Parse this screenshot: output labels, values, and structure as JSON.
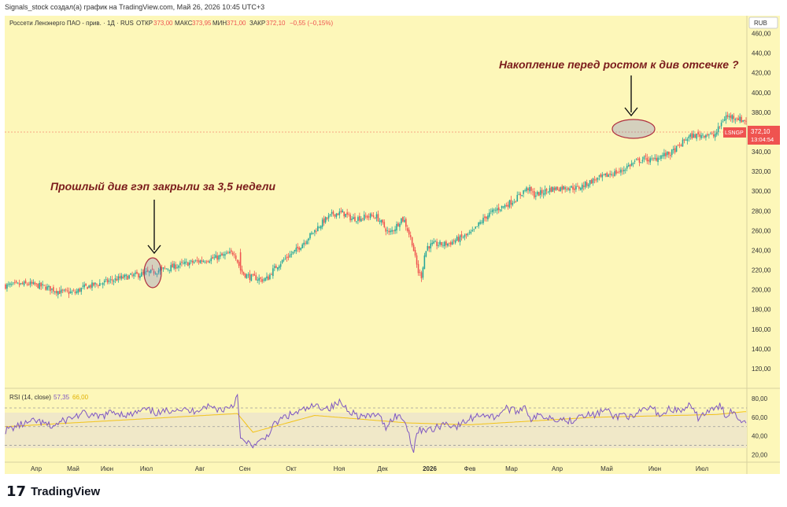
{
  "header": {
    "attribution": "Signals_stock создал(а) график на TradingView.com, Май 26, 2026 10:45 UTC+3"
  },
  "legend": {
    "symbol": "Россети Ленэнерго ПАО - прив. · 1Д · RUS",
    "o_label": "ОТКР",
    "o_val": "373,00",
    "h_label": "МАКС",
    "h_val": "373,95",
    "l_label": "МИН",
    "l_val": "371,00",
    "c_label": "ЗАКР",
    "c_val": "372,10",
    "change": "−0,55 (−0,15%)"
  },
  "currency": "RUB",
  "price_tag": {
    "ticker": "LSNGP",
    "price": "372,10",
    "countdown": "13:04:54"
  },
  "annotations": {
    "left": "Прошлый див гэп закрыли за 3,5 недели",
    "right": "Накопление перед ростом к див отсечке ?"
  },
  "rsi": {
    "title": "RSI (14, close)",
    "value": "57,35",
    "ma": "66,00"
  },
  "branding": {
    "logo_mark": "17",
    "name": "TradingView"
  },
  "colors": {
    "background": "#fdf7b9",
    "up": "#26a69a",
    "down": "#ef5350",
    "rsi_line": "#7e57c2",
    "rsi_ma": "#f3c316",
    "rsi_band": "#f0e8c8",
    "annotation": "#7b1c1c",
    "price_tag": "#ef5350"
  },
  "chart_data": [
    {
      "type": "candlestick",
      "y_ticks": [
        120,
        140,
        160,
        180,
        200,
        220,
        240,
        260,
        280,
        300,
        320,
        340,
        360,
        380,
        400,
        420,
        440,
        460
      ],
      "y_tick_labels": [
        "120,00",
        "140,00",
        "160,00",
        "180,00",
        "200,00",
        "220,00",
        "240,00",
        "260,00",
        "280,00",
        "300,00",
        "320,00",
        "340,00",
        "360,00",
        "380,00",
        "400,00",
        "420,00",
        "440,00",
        "460,00"
      ],
      "ylim": [
        100,
        478
      ],
      "x_labels": [
        "Апр",
        "Май",
        "Июн",
        "Июл",
        "Авг",
        "Сен",
        "Окт",
        "Ноя",
        "Дек",
        "2026",
        "Фев",
        "Мар",
        "Апр",
        "Май",
        "Июн",
        "Июл"
      ],
      "bold_x_label": "2026",
      "close_path": [
        [
          0,
          204
        ],
        [
          15,
          206
        ],
        [
          25,
          203
        ],
        [
          35,
          198
        ],
        [
          45,
          197
        ],
        [
          50,
          202
        ],
        [
          55,
          204
        ],
        [
          65,
          208
        ],
        [
          75,
          212
        ],
        [
          85,
          215
        ],
        [
          95,
          218
        ],
        [
          105,
          222
        ],
        [
          115,
          226
        ],
        [
          125,
          229
        ],
        [
          135,
          232
        ],
        [
          142,
          235
        ],
        [
          148,
          238
        ],
        [
          150,
          229
        ],
        [
          152,
          220
        ],
        [
          154,
          216
        ],
        [
          158,
          213
        ],
        [
          162,
          212
        ],
        [
          166,
          210
        ],
        [
          170,
          212
        ],
        [
          172,
          218
        ],
        [
          176,
          225
        ],
        [
          182,
          233
        ],
        [
          188,
          240
        ],
        [
          194,
          250
        ],
        [
          200,
          260
        ],
        [
          206,
          270
        ],
        [
          212,
          277
        ],
        [
          218,
          278
        ],
        [
          224,
          272
        ],
        [
          230,
          273
        ],
        [
          236,
          275
        ],
        [
          240,
          274
        ],
        [
          244,
          266
        ],
        [
          248,
          257
        ],
        [
          252,
          263
        ],
        [
          256,
          272
        ],
        [
          258,
          270
        ],
        [
          260,
          261
        ],
        [
          263,
          248
        ],
        [
          265,
          232
        ],
        [
          267,
          218
        ],
        [
          269,
          214
        ],
        [
          271,
          235
        ],
        [
          273,
          244
        ],
        [
          277,
          246
        ],
        [
          282,
          246
        ],
        [
          287,
          247
        ],
        [
          292,
          251
        ],
        [
          297,
          254
        ],
        [
          302,
          258
        ],
        [
          307,
          268
        ],
        [
          312,
          276
        ],
        [
          318,
          282
        ],
        [
          324,
          286
        ],
        [
          330,
          292
        ],
        [
          335,
          300
        ],
        [
          338,
          303
        ],
        [
          342,
          296
        ],
        [
          346,
          298
        ],
        [
          352,
          302
        ],
        [
          358,
          303
        ],
        [
          364,
          304
        ],
        [
          370,
          303
        ],
        [
          374,
          306
        ],
        [
          380,
          311
        ],
        [
          386,
          314
        ],
        [
          392,
          318
        ],
        [
          398,
          320
        ],
        [
          402,
          325
        ],
        [
          408,
          330
        ],
        [
          414,
          333
        ],
        [
          418,
          331
        ],
        [
          424,
          336
        ],
        [
          430,
          338
        ],
        [
          436,
          346
        ],
        [
          440,
          353
        ],
        [
          444,
          356
        ],
        [
          450,
          357
        ],
        [
          454,
          358
        ],
        [
          458,
          356
        ],
        [
          460,
          360
        ],
        [
          462,
          366
        ],
        [
          464,
          372
        ],
        [
          466,
          376
        ],
        [
          468,
          375
        ],
        [
          470,
          376
        ],
        [
          472,
          375
        ],
        [
          474,
          374
        ],
        [
          476,
          372
        ],
        [
          478,
          372
        ]
      ],
      "highlights": [
        {
          "center_index": 150,
          "price": 227
        },
        {
          "center_index": 468,
          "price": 373
        }
      ]
    },
    {
      "type": "line",
      "title": "RSI (14, close)",
      "y_ticks": [
        20,
        40,
        60,
        80
      ],
      "y_tick_labels": [
        "20,00",
        "40,00",
        "60,00",
        "80,00"
      ],
      "ylim": [
        12,
        91
      ],
      "bands": [
        30,
        50,
        70
      ],
      "rsi_path": [
        [
          0,
          46
        ],
        [
          10,
          52
        ],
        [
          20,
          56
        ],
        [
          30,
          50
        ],
        [
          40,
          58
        ],
        [
          50,
          64
        ],
        [
          60,
          60
        ],
        [
          70,
          66
        ],
        [
          80,
          62
        ],
        [
          90,
          68
        ],
        [
          100,
          64
        ],
        [
          110,
          70
        ],
        [
          120,
          66
        ],
        [
          130,
          72
        ],
        [
          140,
          68
        ],
        [
          148,
          74
        ],
        [
          150,
          88
        ],
        [
          152,
          36
        ],
        [
          156,
          32
        ],
        [
          162,
          30
        ],
        [
          168,
          38
        ],
        [
          174,
          52
        ],
        [
          180,
          60
        ],
        [
          190,
          66
        ],
        [
          200,
          72
        ],
        [
          210,
          70
        ],
        [
          216,
          76
        ],
        [
          222,
          68
        ],
        [
          228,
          62
        ],
        [
          234,
          60
        ],
        [
          240,
          64
        ],
        [
          246,
          50
        ],
        [
          252,
          62
        ],
        [
          258,
          58
        ],
        [
          262,
          36
        ],
        [
          264,
          24
        ],
        [
          266,
          44
        ],
        [
          270,
          48
        ],
        [
          276,
          46
        ],
        [
          284,
          54
        ],
        [
          292,
          50
        ],
        [
          300,
          58
        ],
        [
          308,
          64
        ],
        [
          316,
          60
        ],
        [
          324,
          70
        ],
        [
          330,
          66
        ],
        [
          336,
          72
        ],
        [
          340,
          58
        ],
        [
          346,
          62
        ],
        [
          352,
          60
        ],
        [
          360,
          58
        ],
        [
          366,
          56
        ],
        [
          372,
          64
        ],
        [
          380,
          62
        ],
        [
          388,
          68
        ],
        [
          394,
          60
        ],
        [
          400,
          64
        ],
        [
          406,
          58
        ],
        [
          412,
          68
        ],
        [
          418,
          70
        ],
        [
          424,
          62
        ],
        [
          430,
          70
        ],
        [
          436,
          66
        ],
        [
          442,
          72
        ],
        [
          448,
          60
        ],
        [
          454,
          66
        ],
        [
          458,
          68
        ],
        [
          462,
          72
        ],
        [
          466,
          62
        ],
        [
          470,
          68
        ],
        [
          474,
          58
        ],
        [
          478,
          57
        ]
      ],
      "ma_path": [
        [
          0,
          50
        ],
        [
          150,
          64
        ],
        [
          160,
          44
        ],
        [
          200,
          62
        ],
        [
          260,
          54
        ],
        [
          300,
          52
        ],
        [
          380,
          60
        ],
        [
          460,
          63
        ],
        [
          478,
          66
        ]
      ]
    }
  ]
}
